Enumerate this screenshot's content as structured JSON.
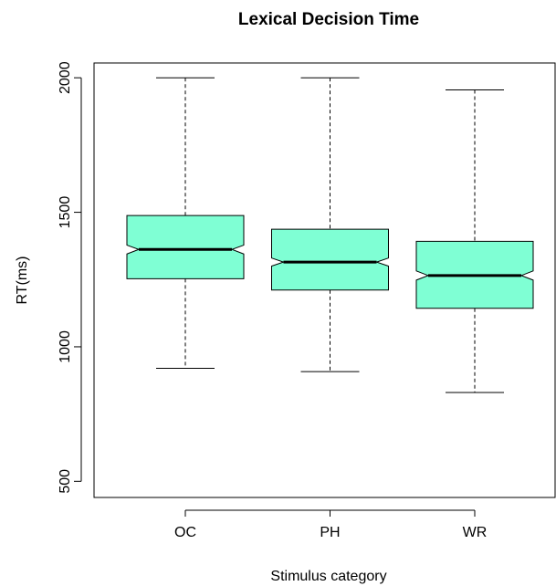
{
  "chart_data": {
    "type": "boxplot",
    "title": "Lexical Decision Time",
    "xlabel": "Stimulus category",
    "ylabel": "RT(ms)",
    "ylim": [
      440,
      2055
    ],
    "yticks": [
      500,
      1000,
      1500,
      2000
    ],
    "notched": true,
    "grid": false,
    "box_color": "#7fffd4",
    "categories": [
      "OC",
      "PH",
      "WR"
    ],
    "boxes": [
      {
        "name": "OC",
        "whisker_low": 920,
        "q1": 1253,
        "median": 1362,
        "q3": 1488,
        "whisker_high": 2000,
        "notch_low": 1345,
        "notch_high": 1378
      },
      {
        "name": "PH",
        "whisker_low": 908,
        "q1": 1211,
        "median": 1315,
        "q3": 1437,
        "whisker_high": 2000,
        "notch_low": 1300,
        "notch_high": 1330
      },
      {
        "name": "WR",
        "whisker_low": 830,
        "q1": 1143,
        "median": 1265,
        "q3": 1392,
        "whisker_high": 1955,
        "notch_low": 1248,
        "notch_high": 1282
      }
    ]
  }
}
